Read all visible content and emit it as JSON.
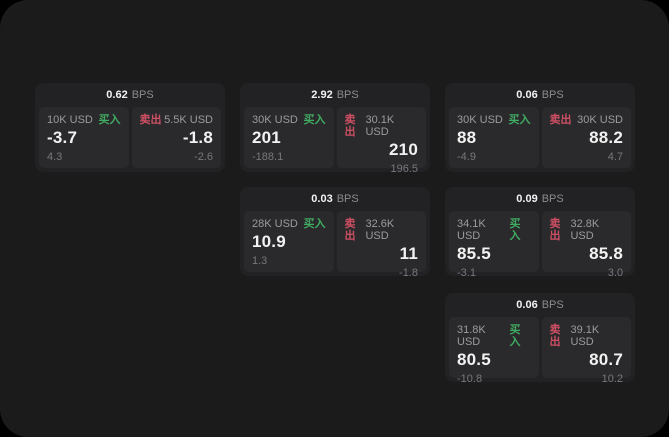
{
  "labels": {
    "bps_unit": "BPS",
    "buy": "买入",
    "sell": "卖出"
  },
  "colors": {
    "background_outer": "#000000",
    "panel_background": "#1b1b1c",
    "card_background": "#222224",
    "tile_background": "#2a2a2c",
    "buy_accent": "#40ab62",
    "sell_accent": "#ce4f63",
    "text_primary": "#f2f2f2",
    "text_secondary": "#9b9ba0",
    "text_muted": "#78787d"
  },
  "cards": [
    {
      "bps": "0.62",
      "buy": {
        "amount": "10K USD",
        "value": "-3.7",
        "delta": "4.3"
      },
      "sell": {
        "amount": "5.5K USD",
        "value": "-1.8",
        "delta": "-2.6"
      }
    },
    {
      "bps": "2.92",
      "buy": {
        "amount": "30K USD",
        "value": "201",
        "delta": "-188.1"
      },
      "sell": {
        "amount": "30.1K USD",
        "value": "210",
        "delta": "196.5"
      }
    },
    {
      "bps": "0.06",
      "buy": {
        "amount": "30K USD",
        "value": "88",
        "delta": "-4.9"
      },
      "sell": {
        "amount": "30K USD",
        "value": "88.2",
        "delta": "4.7"
      }
    },
    {
      "bps": "0.03",
      "buy": {
        "amount": "28K USD",
        "value": "10.9",
        "delta": "1.3"
      },
      "sell": {
        "amount": "32.6K USD",
        "value": "11",
        "delta": "-1.8"
      }
    },
    {
      "bps": "0.09",
      "buy": {
        "amount": "34.1K USD",
        "value": "85.5",
        "delta": "-3.1"
      },
      "sell": {
        "amount": "32.8K USD",
        "value": "85.8",
        "delta": "3.0"
      }
    },
    {
      "bps": "0.06",
      "buy": {
        "amount": "31.8K USD",
        "value": "80.5",
        "delta": "-10.8"
      },
      "sell": {
        "amount": "39.1K USD",
        "value": "80.7",
        "delta": "10.2"
      }
    }
  ]
}
